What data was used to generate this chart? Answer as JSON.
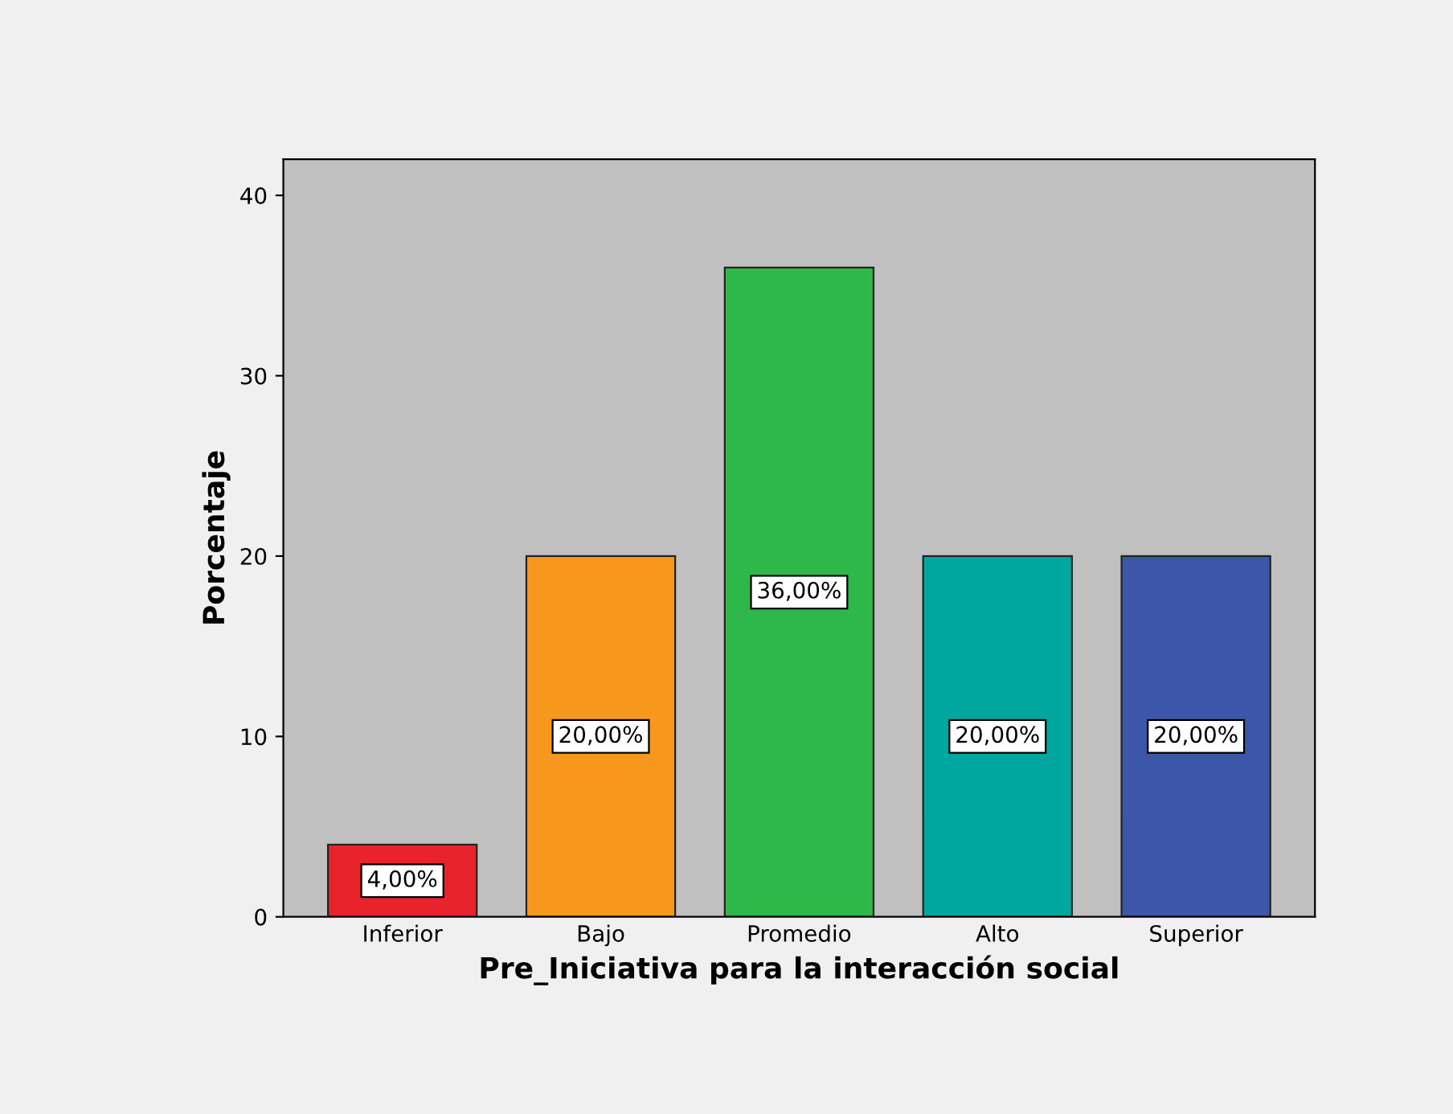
{
  "chart_data": {
    "type": "bar",
    "xlabel": "Pre_Iniciativa para la interacción social",
    "ylabel": "Porcentaje",
    "categories": [
      "Inferior",
      "Bajo",
      "Promedio",
      "Alto",
      "Superior"
    ],
    "values": [
      4,
      20,
      36,
      20,
      20
    ],
    "colors": [
      "#e8232b",
      "#f7981d",
      "#2fb84a",
      "#00a7a1",
      "#3c57a9"
    ],
    "value_labels": [
      "4,00%",
      "20,00%",
      "36,00%",
      "20,00%",
      "20,00%"
    ],
    "ylim": [
      0,
      42
    ],
    "yticks": [
      0,
      10,
      20,
      30,
      40
    ],
    "grid": false,
    "legend": false
  }
}
